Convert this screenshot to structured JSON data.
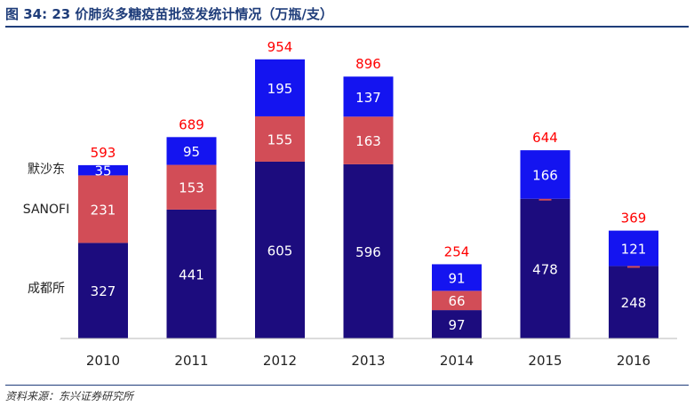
{
  "title": "图 34: 23 价肺炎多糖疫苗批签发统计情况（万瓶/支）",
  "source": "资料来源：东兴证券研究所",
  "colors": {
    "chengdu": "#1c0c7e",
    "sanofi": "#d24d57",
    "msd": "#1414f0",
    "total_label": "#ff0000",
    "title": "#1f3d7a"
  },
  "chart_data": {
    "type": "bar",
    "stacked": true,
    "categories": [
      "2010",
      "2011",
      "2012",
      "2013",
      "2014",
      "2015",
      "2016"
    ],
    "series": [
      {
        "name": "成都所",
        "color": "#1c0c7e",
        "values": [
          327,
          441,
          605,
          596,
          97,
          478,
          248
        ]
      },
      {
        "name": "SANOFI",
        "color": "#d24d57",
        "values": [
          231,
          153,
          155,
          163,
          66,
          0,
          0
        ]
      },
      {
        "name": "默沙东",
        "color": "#1414f0",
        "values": [
          35,
          95,
          195,
          137,
          91,
          166,
          121
        ]
      }
    ],
    "totals": [
      593,
      689,
      954,
      896,
      254,
      644,
      369
    ],
    "ylim": [
      0,
      1000
    ],
    "grid": false,
    "legend": "left, inline labels"
  }
}
